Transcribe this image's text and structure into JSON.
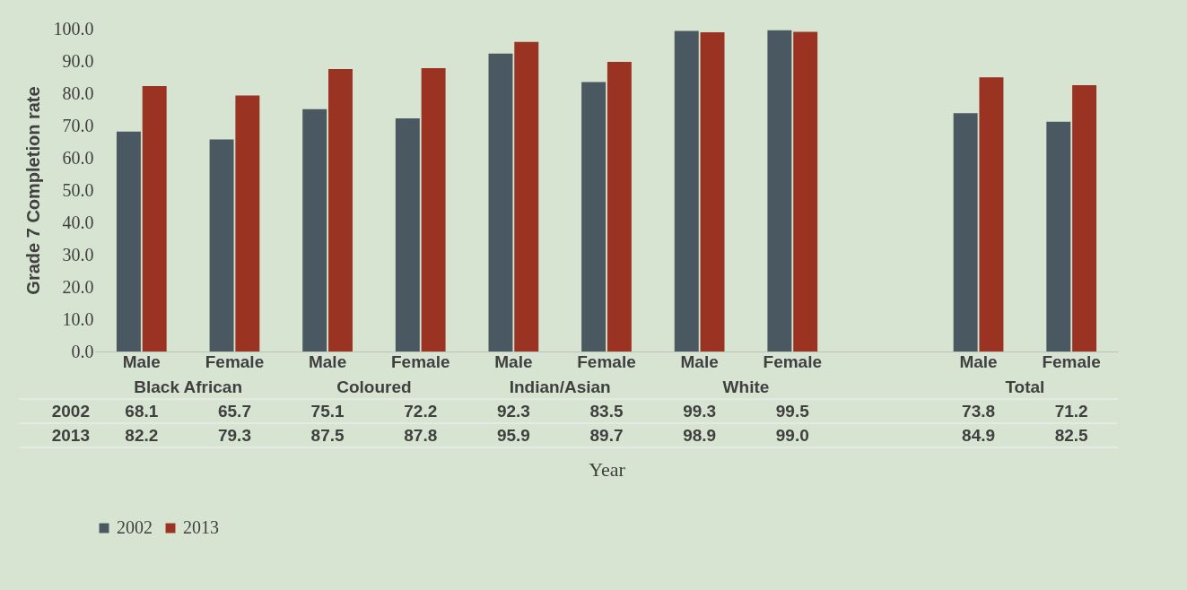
{
  "chart_data": {
    "type": "bar",
    "xlabel": "Year",
    "ylabel": "Grade 7 Completion rate",
    "categories": [
      "Male",
      "Female",
      "Male",
      "Female",
      "Male",
      "Female",
      "Male",
      "Female",
      null,
      "Male",
      "Female"
    ],
    "series": [
      {
        "name": "2002",
        "color": "#4a5961",
        "values": [
          68.1,
          65.7,
          75.1,
          72.2,
          92.3,
          83.5,
          99.3,
          99.5,
          null,
          73.8,
          71.2
        ],
        "value_labels": [
          "68.1",
          "65.7",
          "75.1",
          "72.2",
          "92.3",
          "83.5",
          "99.3",
          "99.5",
          null,
          "73.8",
          "71.2"
        ]
      },
      {
        "name": "2013",
        "color": "#9a3322",
        "values": [
          82.2,
          79.3,
          87.5,
          87.8,
          95.9,
          89.7,
          98.9,
          99.0,
          null,
          84.9,
          82.5
        ],
        "value_labels": [
          "82.2",
          "79.3",
          "87.5",
          "87.8",
          "95.9",
          "89.7",
          "98.9",
          "99.0",
          null,
          "84.9",
          "82.5"
        ]
      }
    ],
    "annotations": [
      "Black African",
      "Coloured",
      "Indian/Asian",
      "White",
      "Total"
    ],
    "ylim": [
      0,
      100
    ],
    "yticks": [
      {
        "value": 0,
        "label": "0.0"
      },
      {
        "value": 10,
        "label": "10.0"
      },
      {
        "value": 20,
        "label": "20.0"
      },
      {
        "value": 30,
        "label": "30.0"
      },
      {
        "value": 40,
        "label": "40.0"
      },
      {
        "value": 50,
        "label": "50.0"
      },
      {
        "value": 60,
        "label": "60.0"
      },
      {
        "value": 70,
        "label": "70.0"
      },
      {
        "value": 80,
        "label": "80.0"
      },
      {
        "value": 90,
        "label": "90.0"
      },
      {
        "value": 100,
        "label": "100.0"
      }
    ],
    "legend": "bottom",
    "grid": false
  }
}
